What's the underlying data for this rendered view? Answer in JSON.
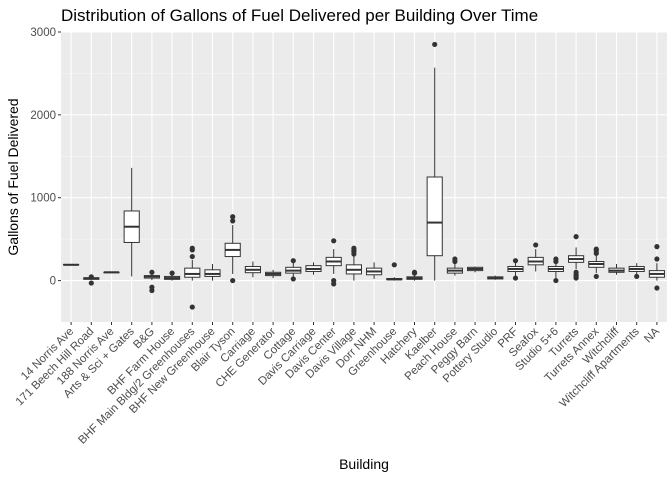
{
  "chart_data": {
    "type": "boxplot",
    "title": "Distribution of Gallons of Fuel Delivered per Building Over Time",
    "xlabel": "Building",
    "ylabel": "Gallons of  Fuel Delivered",
    "ylim": [
      -500,
      3000
    ],
    "yticks": [
      0,
      1000,
      2000,
      3000
    ],
    "grid": true,
    "categories": [
      "14 Norris Ave",
      "171 Beech Hill Road",
      "188 Norris Ave",
      "Arts & Sci + Gates",
      "B&G",
      "BHF Farm House",
      "BHF Main Bldg/2 Greenhouses",
      "BHF New Greenhouse",
      "Blair Tyson",
      "Carriage",
      "CHE Generator",
      "Cottage",
      "Davis Carriage",
      "Davis Center",
      "Davis Village",
      "Dorr NHM",
      "Greenhouse",
      "Hatchery",
      "Kaelber",
      "Peach House",
      "Peggy Barn",
      "Pottery Studio",
      "PRF",
      "Seafox",
      "Studio 5+6",
      "Turrets",
      "Turrets Annex",
      "Witchcliff",
      "Witchcliff Apartments",
      "NA"
    ],
    "boxes": [
      {
        "whisker_low": 190,
        "q1": 190,
        "median": 190,
        "q3": 195,
        "whisker_high": 195,
        "outliers": []
      },
      {
        "whisker_low": 10,
        "q1": 15,
        "median": 25,
        "q3": 35,
        "whisker_high": 45,
        "outliers": [
          -30,
          45
        ]
      },
      {
        "whisker_low": 95,
        "q1": 95,
        "median": 100,
        "q3": 100,
        "whisker_high": 100,
        "outliers": []
      },
      {
        "whisker_low": 50,
        "q1": 460,
        "median": 650,
        "q3": 840,
        "whisker_high": 1360,
        "outliers": []
      },
      {
        "whisker_low": 5,
        "q1": 30,
        "median": 50,
        "q3": 60,
        "whisker_high": 90,
        "outliers": [
          -120,
          -80,
          100
        ]
      },
      {
        "whisker_low": 0,
        "q1": 15,
        "median": 30,
        "q3": 50,
        "whisker_high": 90,
        "outliers": [
          90
        ]
      },
      {
        "whisker_low": 0,
        "q1": 40,
        "median": 80,
        "q3": 150,
        "whisker_high": 250,
        "outliers": [
          -320,
          290,
          370,
          390
        ]
      },
      {
        "whisker_low": 0,
        "q1": 50,
        "median": 80,
        "q3": 130,
        "whisker_high": 200,
        "outliers": []
      },
      {
        "whisker_low": 80,
        "q1": 290,
        "median": 370,
        "q3": 450,
        "whisker_high": 670,
        "outliers": [
          0,
          720,
          770
        ]
      },
      {
        "whisker_low": 40,
        "q1": 95,
        "median": 130,
        "q3": 170,
        "whisker_high": 230,
        "outliers": []
      },
      {
        "whisker_low": 30,
        "q1": 60,
        "median": 80,
        "q3": 100,
        "whisker_high": 130,
        "outliers": []
      },
      {
        "whisker_low": 40,
        "q1": 90,
        "median": 120,
        "q3": 160,
        "whisker_high": 220,
        "outliers": [
          20,
          240
        ]
      },
      {
        "whisker_low": 70,
        "q1": 110,
        "median": 140,
        "q3": 180,
        "whisker_high": 220,
        "outliers": []
      },
      {
        "whisker_low": 80,
        "q1": 180,
        "median": 230,
        "q3": 280,
        "whisker_high": 380,
        "outliers": [
          -40,
          0,
          480
        ]
      },
      {
        "whisker_low": 0,
        "q1": 80,
        "median": 130,
        "q3": 190,
        "whisker_high": 310,
        "outliers": [
          320,
          350,
          370,
          390
        ]
      },
      {
        "whisker_low": 20,
        "q1": 70,
        "median": 110,
        "q3": 150,
        "whisker_high": 220,
        "outliers": []
      },
      {
        "whisker_low": 0,
        "q1": 10,
        "median": 15,
        "q3": 25,
        "whisker_high": 40,
        "outliers": [
          190
        ]
      },
      {
        "whisker_low": 0,
        "q1": 15,
        "median": 30,
        "q3": 45,
        "whisker_high": 70,
        "outliers": [
          90,
          100
        ]
      },
      {
        "whisker_low": 0,
        "q1": 300,
        "median": 700,
        "q3": 1250,
        "whisker_high": 2570,
        "outliers": [
          2850
        ]
      },
      {
        "whisker_low": 60,
        "q1": 90,
        "median": 120,
        "q3": 150,
        "whisker_high": 210,
        "outliers": [
          230,
          260
        ]
      },
      {
        "whisker_low": 100,
        "q1": 120,
        "median": 140,
        "q3": 160,
        "whisker_high": 170,
        "outliers": []
      },
      {
        "whisker_low": 10,
        "q1": 20,
        "median": 30,
        "q3": 45,
        "whisker_high": 60,
        "outliers": []
      },
      {
        "whisker_low": 40,
        "q1": 110,
        "median": 140,
        "q3": 170,
        "whisker_high": 230,
        "outliers": [
          30,
          240
        ]
      },
      {
        "whisker_low": 110,
        "q1": 190,
        "median": 230,
        "q3": 280,
        "whisker_high": 380,
        "outliers": [
          430
        ]
      },
      {
        "whisker_low": 30,
        "q1": 110,
        "median": 140,
        "q3": 170,
        "whisker_high": 220,
        "outliers": [
          0,
          230,
          260
        ]
      },
      {
        "whisker_low": 140,
        "q1": 220,
        "median": 260,
        "q3": 300,
        "whisker_high": 400,
        "outliers": [
          30,
          50,
          70,
          100,
          530
        ]
      },
      {
        "whisker_low": 90,
        "q1": 160,
        "median": 200,
        "q3": 230,
        "whisker_high": 310,
        "outliers": [
          50,
          330,
          360,
          380
        ]
      },
      {
        "whisker_low": 70,
        "q1": 100,
        "median": 120,
        "q3": 150,
        "whisker_high": 200,
        "outliers": []
      },
      {
        "whisker_low": 60,
        "q1": 110,
        "median": 140,
        "q3": 170,
        "whisker_high": 210,
        "outliers": [
          50
        ]
      },
      {
        "whisker_low": 0,
        "q1": 40,
        "median": 80,
        "q3": 120,
        "whisker_high": 210,
        "outliers": [
          -90,
          260,
          410
        ]
      }
    ]
  },
  "colors": {
    "panel": "#ebebeb",
    "grid_major": "#ffffff",
    "grid_minor": "#f5f5f5",
    "box_fill": "#ffffff",
    "box_line": "#333333",
    "tick_text": "#4d4d4d"
  }
}
